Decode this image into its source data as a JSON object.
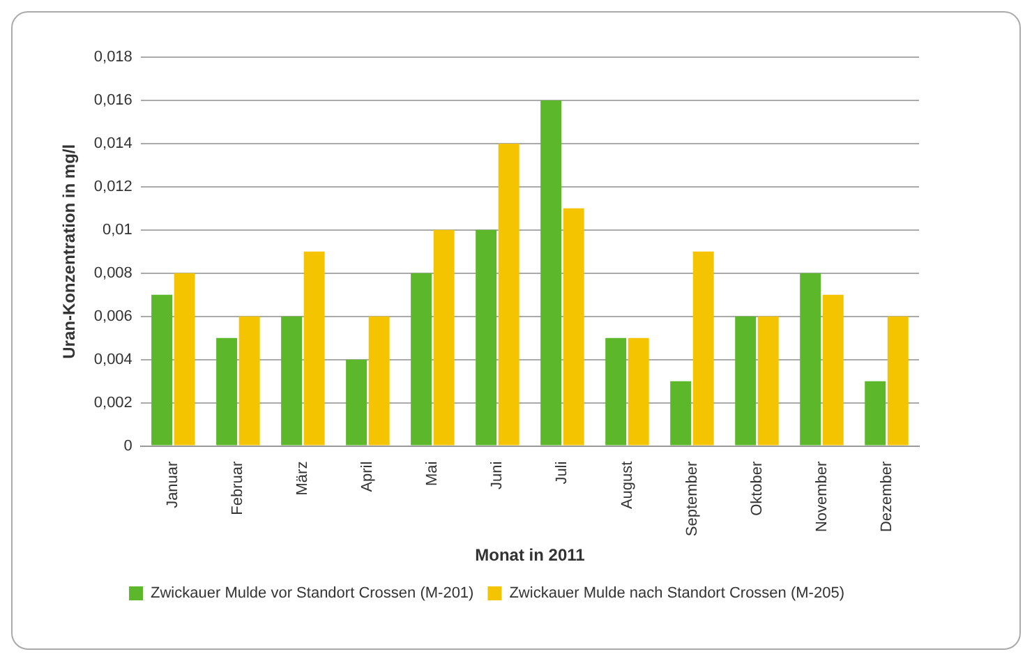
{
  "chart_data": {
    "type": "bar",
    "xlabel": "Monat in 2011",
    "ylabel": "Uran-Konzentration in mg/l",
    "categories": [
      "Januar",
      "Februar",
      "März",
      "April",
      "Mai",
      "Juni",
      "Juli",
      "August",
      "September",
      "Oktober",
      "November",
      "Dezember"
    ],
    "series": [
      {
        "name": "Zwickauer Mulde vor Standort Crossen (M-201)",
        "color": "#5cb82a",
        "values": [
          0.007,
          0.005,
          0.006,
          0.004,
          0.008,
          0.01,
          0.016,
          0.005,
          0.003,
          0.006,
          0.008,
          0.003
        ]
      },
      {
        "name": "Zwickauer Mulde nach Standort Crossen (M-205)",
        "color": "#f5c400",
        "values": [
          0.008,
          0.006,
          0.009,
          0.006,
          0.01,
          0.014,
          0.011,
          0.005,
          0.009,
          0.006,
          0.007,
          0.006
        ]
      }
    ],
    "ylim": [
      0,
      0.018
    ],
    "yticks": [
      0,
      {
        "value": 0.002,
        "label": "0,002"
      },
      {
        "value": 0.004,
        "label": "0,004"
      },
      {
        "value": 0.006,
        "label": "0,006"
      },
      {
        "value": 0.008,
        "label": "0,008"
      },
      {
        "value": 0.01,
        "label": "0,01"
      },
      {
        "value": 0.012,
        "label": "0,012"
      },
      {
        "value": 0.014,
        "label": "0,014"
      },
      {
        "value": 0.016,
        "label": "0,016"
      },
      {
        "value": 0.018,
        "label": "0,018"
      }
    ],
    "grid": "y",
    "legend": "bottom"
  }
}
